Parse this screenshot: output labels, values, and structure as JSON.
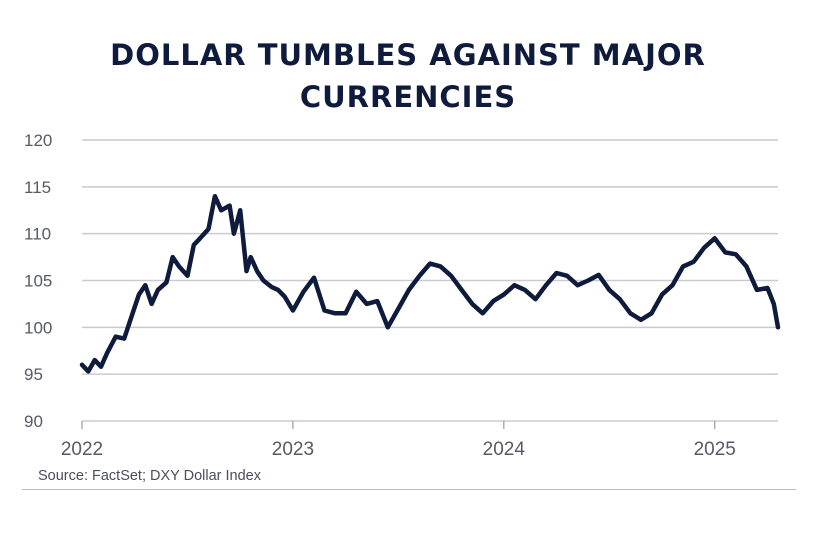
{
  "chart_data": {
    "type": "line",
    "title": "DOLLAR TUMBLES AGAINST MAJOR CURRENCIES",
    "xlabel": "",
    "ylabel": "",
    "ylim": [
      90,
      120
    ],
    "yticks": [
      90,
      95,
      100,
      105,
      110,
      115,
      120
    ],
    "xlim": [
      2022.0,
      2025.3
    ],
    "xticks": [
      {
        "value": 2022,
        "label": "2022"
      },
      {
        "value": 2023,
        "label": "2023"
      },
      {
        "value": 2024,
        "label": "2024"
      },
      {
        "value": 2025,
        "label": "2025"
      }
    ],
    "grid": true,
    "line_color": "#0f1b3d",
    "series": [
      {
        "name": "",
        "x": [
          2022.0,
          2022.03,
          2022.06,
          2022.09,
          2022.12,
          2022.16,
          2022.2,
          2022.24,
          2022.27,
          2022.3,
          2022.33,
          2022.36,
          2022.4,
          2022.43,
          2022.46,
          2022.5,
          2022.53,
          2022.56,
          2022.6,
          2022.63,
          2022.66,
          2022.7,
          2022.72,
          2022.75,
          2022.78,
          2022.8,
          2022.83,
          2022.86,
          2022.9,
          2022.93,
          2022.96,
          2023.0,
          2023.05,
          2023.1,
          2023.15,
          2023.2,
          2023.25,
          2023.3,
          2023.35,
          2023.4,
          2023.45,
          2023.5,
          2023.55,
          2023.6,
          2023.65,
          2023.7,
          2023.75,
          2023.8,
          2023.85,
          2023.9,
          2023.95,
          2024.0,
          2024.05,
          2024.1,
          2024.15,
          2024.2,
          2024.25,
          2024.3,
          2024.35,
          2024.4,
          2024.45,
          2024.5,
          2024.55,
          2024.6,
          2024.65,
          2024.7,
          2024.75,
          2024.8,
          2024.85,
          2024.9,
          2024.95,
          2025.0,
          2025.05,
          2025.1,
          2025.15,
          2025.2,
          2025.25,
          2025.28,
          2025.3
        ],
        "y": [
          96.0,
          95.3,
          96.5,
          95.8,
          97.3,
          99.0,
          98.8,
          101.5,
          103.5,
          104.5,
          102.5,
          104.0,
          104.8,
          107.5,
          106.5,
          105.5,
          108.8,
          109.5,
          110.5,
          114.0,
          112.5,
          113.0,
          110.0,
          112.5,
          106.0,
          107.5,
          106.0,
          105.0,
          104.3,
          104.0,
          103.3,
          101.8,
          103.8,
          105.3,
          101.8,
          101.5,
          101.5,
          103.8,
          102.5,
          102.8,
          100.0,
          102.0,
          104.0,
          105.5,
          106.8,
          106.5,
          105.5,
          104.0,
          102.5,
          101.5,
          102.8,
          103.5,
          104.5,
          104.0,
          103.0,
          104.5,
          105.8,
          105.5,
          104.5,
          105.0,
          105.6,
          104.0,
          103.0,
          101.5,
          100.8,
          101.5,
          103.5,
          104.5,
          106.5,
          107.0,
          108.5,
          109.5,
          108.0,
          107.8,
          106.5,
          104.0,
          104.2,
          102.5,
          100.0
        ]
      }
    ]
  },
  "footer": {
    "source": "Source: FactSet; DXY Dollar Index"
  }
}
